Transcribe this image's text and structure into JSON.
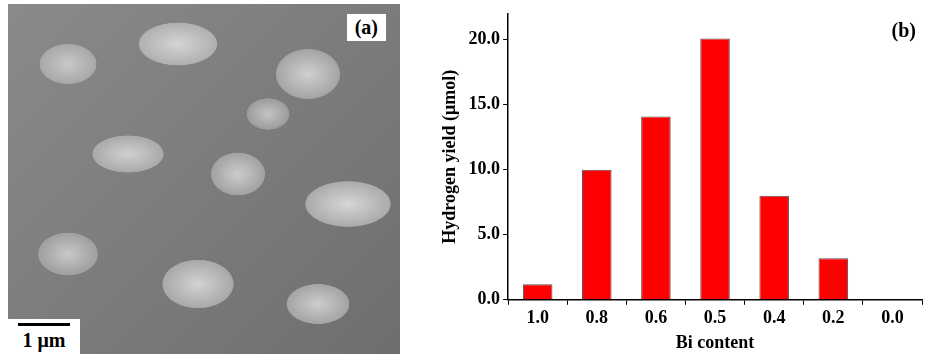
{
  "image_panel": {
    "label": "(a)",
    "scale_bar": "1 μm"
  },
  "chart_data": {
    "type": "bar",
    "annotation": "(b)",
    "x_label": "Bi content",
    "y_label": "Hydrogen yield (μmol)",
    "categories": [
      "1.0",
      "0.8",
      "0.6",
      "0.5",
      "0.4",
      "0.2",
      "0.0"
    ],
    "values": [
      1.2,
      10.0,
      14.1,
      20.1,
      8.0,
      3.2,
      0
    ],
    "color": "#ff0000",
    "ylim": [
      0,
      22
    ],
    "yticks": [
      {
        "value": 0,
        "label": "0.0"
      },
      {
        "value": 5,
        "label": "5.0"
      },
      {
        "value": 10,
        "label": "10.0"
      },
      {
        "value": 15,
        "label": "15.0"
      },
      {
        "value": 20,
        "label": "20.0"
      }
    ],
    "grid": false
  }
}
